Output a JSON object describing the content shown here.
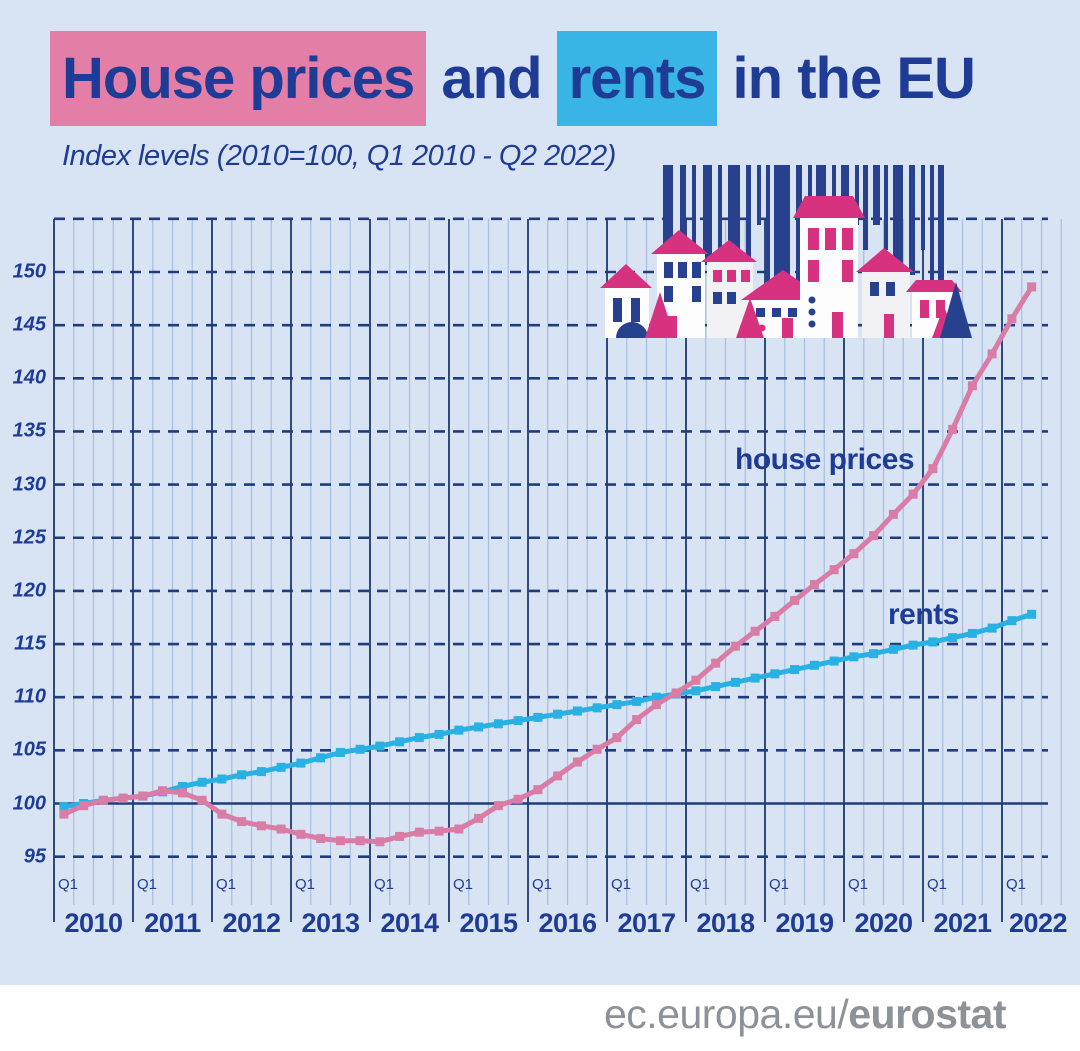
{
  "title": {
    "highlight1": "House prices",
    "middle": " and ",
    "highlight2": "rents",
    "end": " in the EU"
  },
  "subtitle": "Index levels (2010=100, Q1 2010 - Q2 2022)",
  "footer": {
    "url_regular": "ec.europa.eu/",
    "url_bold": "eurostat",
    "flag_icon": "eu-flag"
  },
  "colors": {
    "background": "#d8e3f3",
    "title_text": "#1e3c96",
    "highlight_pink": "#e37ea6",
    "highlight_blue": "#38b4e6",
    "house_prices_line": "#d97da6",
    "rents_line": "#29b1e3",
    "grid_dark": "#1f3d7e",
    "grid_light": "#aabfdf",
    "footer_text": "#8d9299",
    "flag_blue": "#2a3e8c",
    "flag_stars": "#f7d117",
    "illustration_pink": "#d6327f",
    "illustration_blue": "#28418f"
  },
  "chart_data": {
    "type": "line",
    "title": "House prices and rents in the EU",
    "subtitle": "Index levels (2010=100, Q1 2010 - Q2 2022)",
    "frequency": "quarterly",
    "x_start": "2010-Q1",
    "x_end": "2022-Q2",
    "years": [
      2010,
      2011,
      2012,
      2013,
      2014,
      2015,
      2016,
      2017,
      2018,
      2019,
      2020,
      2021,
      2022
    ],
    "quarter_tick_label": "Q1",
    "yticks": [
      95,
      100,
      105,
      110,
      115,
      120,
      125,
      130,
      135,
      140,
      145,
      150
    ],
    "ylim": [
      90.5,
      155
    ],
    "baseline": 100,
    "grid": "horizontal dashed at 5-unit steps (solid at 100), vertical dark per year with light quarterly lines",
    "legend_position": "inline labels near lines",
    "series": [
      {
        "name": "rents",
        "color": "#29b1e3",
        "values": [
          99.7,
          100.0,
          100.3,
          100.5,
          100.7,
          101.1,
          101.6,
          102.0,
          102.3,
          102.7,
          103.0,
          103.4,
          103.8,
          104.3,
          104.8,
          105.1,
          105.4,
          105.8,
          106.2,
          106.5,
          106.9,
          107.2,
          107.5,
          107.8,
          108.1,
          108.4,
          108.7,
          109.0,
          109.3,
          109.6,
          110.0,
          110.3,
          110.6,
          111.0,
          111.4,
          111.8,
          112.2,
          112.6,
          113.0,
          113.4,
          113.8,
          114.1,
          114.5,
          114.9,
          115.2,
          115.6,
          116.0,
          116.5,
          117.2,
          117.8
        ]
      },
      {
        "name": "house prices",
        "color": "#d97da6",
        "values": [
          99.0,
          99.8,
          100.3,
          100.5,
          100.7,
          101.2,
          101.0,
          100.3,
          99.0,
          98.3,
          97.9,
          97.6,
          97.1,
          96.7,
          96.5,
          96.5,
          96.4,
          96.9,
          97.3,
          97.4,
          97.6,
          98.6,
          99.8,
          100.4,
          101.3,
          102.6,
          103.9,
          105.1,
          106.2,
          107.9,
          109.3,
          110.4,
          111.6,
          113.2,
          114.8,
          116.2,
          117.6,
          119.1,
          120.6,
          122.0,
          123.5,
          125.2,
          127.2,
          129.1,
          131.5,
          135.2,
          139.3,
          142.3,
          145.6,
          148.6
        ]
      }
    ]
  }
}
